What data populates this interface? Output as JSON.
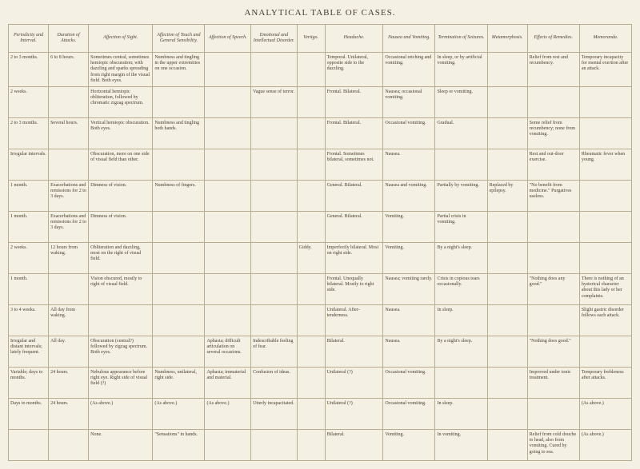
{
  "title": "ANALYTICAL TABLE OF CASES.",
  "columns": [
    "Periodicity and Interval.",
    "Duration of Attacks.",
    "Affection of Sight.",
    "Affection of Touch and General Sensibility.",
    "Affection of Speech.",
    "Emotional and Intellectual Disorder.",
    "Vertigo.",
    "Headache.",
    "Nausea and Vomiting.",
    "Termination of Seizures.",
    "Metamorphosis.",
    "Effects of Remedies.",
    "Memoranda."
  ],
  "rows": [
    [
      "2 to 3 months.",
      "6 to 8 hours.",
      "Sometimes central, sometimes hemiopic obscuration; with dazzling and sparks spreading from right margin of the visual field. Both eyes.",
      "Numbness and tingling in the upper extremities on one occasion.",
      "",
      "",
      "",
      "Temporal. Unilateral, opposite side to the dazzling.",
      "Occasional retching and vomiting.",
      "In sleep, or by artificial vomiting.",
      "",
      "Relief from rest and recumbency.",
      "Temporary incapacity for mental exertion after an attack."
    ],
    [
      "2 weeks.",
      "",
      "Horizontal hemiopic obliteration, followed by chromatic zigzag spectrum.",
      "",
      "",
      "Vague sense of terror.",
      "",
      "Frontal. Bilateral.",
      "Nausea; occasional vomiting.",
      "Sleep or vomiting.",
      "",
      "",
      ""
    ],
    [
      "2 to 3 months.",
      "Several hours.",
      "Vertical hemiopic obscuration. Both eyes.",
      "Numbness and tingling both hands.",
      "",
      "",
      "",
      "Frontal. Bilateral.",
      "Occasional vomiting.",
      "Gradual.",
      "",
      "Some relief from recumbency; none from vomiting.",
      ""
    ],
    [
      "Irregular intervals.",
      "",
      "Obscuration, more on one side of visual field than other.",
      "",
      "",
      "",
      "",
      "Frontal. Sometimes bilateral, sometimes not.",
      "Nausea.",
      "",
      "",
      "Rest and out-door exercise.",
      "Rheumatic fever when young."
    ],
    [
      "1 month.",
      "Exacerbations and remissions for 2 to 3 days.",
      "Dimness of vision.",
      "Numbness of fingers.",
      "",
      "",
      "",
      "General. Bilateral.",
      "Nausea and vomiting.",
      "Partially by vomiting.",
      "Replaced by epilepsy.",
      "\"No benefit from medicine.\" Purgatives useless.",
      ""
    ],
    [
      "1 month.",
      "Exacerbations and remissions for 2 to 3 days.",
      "Dimness of vision.",
      "",
      "",
      "",
      "",
      "General. Bilateral.",
      "Vomiting.",
      "Partial crisis in vomiting.",
      "",
      "",
      ""
    ],
    [
      "2 weeks.",
      "12 hours from waking.",
      "Obliteration and dazzling, most on the right of visual field.",
      "",
      "",
      "",
      "Giddy.",
      "Imperfectly bilateral. Most on right side.",
      "Vomiting.",
      "By a night's sleep.",
      "",
      "",
      ""
    ],
    [
      "1 month.",
      "",
      "Vision obscured, mostly to right of visual field.",
      "",
      "",
      "",
      "",
      "Frontal. Unequally bilateral. Mostly to right side.",
      "Nausea; vomiting rarely.",
      "Crisis in copious tears occasionally.",
      "",
      "\"Nothing does any good.\"",
      "There is nothing of an hysterical character about this lady or her complaints."
    ],
    [
      "3 to 4 weeks.",
      "All day from waking.",
      "",
      "",
      "",
      "",
      "",
      "Unilateral. After-tenderness.",
      "Nausea.",
      "In sleep.",
      "",
      "",
      "Slight gastric disorder follows each attack."
    ],
    [
      "Irregular and distant intervals; lately frequent.",
      "All day.",
      "Obscuration (central?) followed by zigzag spectrum. Both eyes.",
      "",
      "Aphasia; difficult articulation on several occasions.",
      "Indescribable feeling of fear.",
      "",
      "Bilateral.",
      "Nausea.",
      "By a night's sleep.",
      "",
      "\"Nothing does good.\"",
      ""
    ],
    [
      "Variable; days to months.",
      "24 hours.",
      "Nebulous appearance before right eye. Right side of visual field (?)",
      "Numbness, unilateral, right side.",
      "Aphasia; immaterial and material.",
      "Confusion of ideas.",
      "",
      "Unilateral (?)",
      "Occasional vomiting.",
      "",
      "",
      "Improved under tonic treatment.",
      "Temporary feebleness after attacks."
    ],
    [
      "Days to months.",
      "24 hours.",
      "(As above.)",
      "(As above.)",
      "(As above.)",
      "Utterly incapacitated.",
      "",
      "Unilateral (?)",
      "Occasional vomiting.",
      "In sleep.",
      "",
      "",
      "(As above.)"
    ],
    [
      "",
      "",
      "None.",
      "\"Sensations\" in hands.",
      "",
      "",
      "",
      "Bilateral.",
      "Vomiting.",
      "In vomiting.",
      "",
      "Relief from cold douche to head, also from vomiting. Cured by going to sea.",
      "(As above.)"
    ]
  ]
}
